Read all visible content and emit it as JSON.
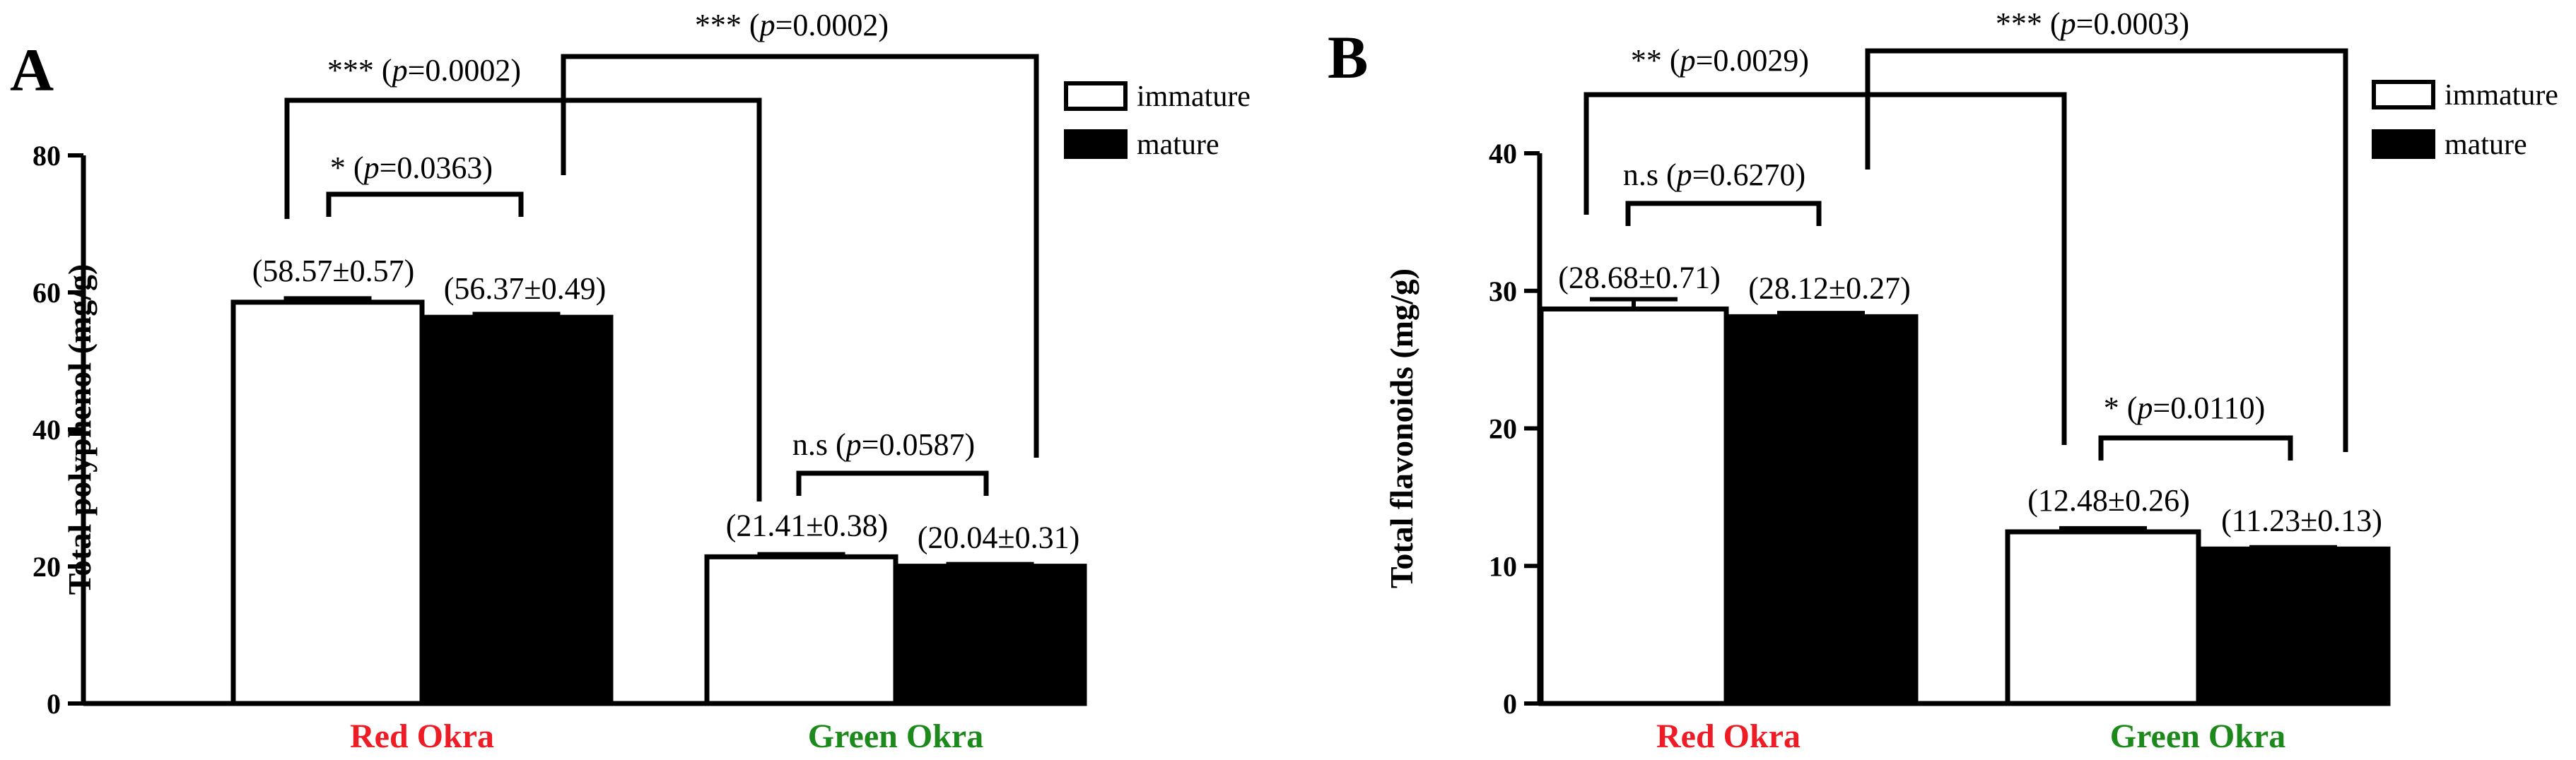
{
  "chart_data": [
    {
      "panel": "A",
      "type": "bar",
      "ylabel": "Total polyphenol (mg/g)",
      "ylim": [
        0,
        80
      ],
      "yticks": [
        0,
        20,
        40,
        60,
        80
      ],
      "categories": [
        {
          "label": "Red Okra",
          "color": "#ee1c25"
        },
        {
          "label": "Green Okra",
          "color": "#1b8a1b"
        }
      ],
      "legend": {
        "placement": "top-right",
        "entries": [
          {
            "label": "immature",
            "fill": "#ffffff"
          },
          {
            "label": "mature",
            "fill": "#000000"
          }
        ]
      },
      "series": [
        {
          "name": "immature",
          "fill": "#ffffff",
          "values": [
            58.57,
            21.41
          ],
          "errors": [
            0.57,
            0.38
          ],
          "labels": [
            "(58.57±0.57)",
            "(21.41±0.38)"
          ]
        },
        {
          "name": "mature",
          "fill": "#000000",
          "values": [
            56.37,
            20.04
          ],
          "errors": [
            0.49,
            0.31
          ],
          "labels": [
            "(56.37±0.49)",
            "(20.04±0.31)"
          ]
        }
      ],
      "comparisons": [
        {
          "stars": "*",
          "p": "0.0363",
          "kind": "within-red"
        },
        {
          "stars": "n.s",
          "p": "0.0587",
          "kind": "within-green"
        },
        {
          "stars": "***",
          "p": "0.0002",
          "kind": "immature"
        },
        {
          "stars": "***",
          "p": "0.0002",
          "kind": "mature"
        }
      ]
    },
    {
      "panel": "B",
      "type": "bar",
      "ylabel": "Total flavonoids (mg/g)",
      "ylim": [
        0,
        40
      ],
      "yticks": [
        0,
        10,
        20,
        30,
        40
      ],
      "categories": [
        {
          "label": "Red Okra",
          "color": "#ee1c25"
        },
        {
          "label": "Green Okra",
          "color": "#1b8a1b"
        }
      ],
      "legend": {
        "placement": "top-right",
        "entries": [
          {
            "label": "immature",
            "fill": "#ffffff"
          },
          {
            "label": "mature",
            "fill": "#000000"
          }
        ]
      },
      "series": [
        {
          "name": "immature",
          "fill": "#ffffff",
          "values": [
            28.68,
            12.48
          ],
          "errors": [
            0.71,
            0.26
          ],
          "labels": [
            "(28.68±0.71)",
            "(12.48±0.26)"
          ]
        },
        {
          "name": "mature",
          "fill": "#000000",
          "values": [
            28.12,
            11.23
          ],
          "errors": [
            0.27,
            0.13
          ],
          "labels": [
            "(28.12±0.27)",
            "(11.23±0.13)"
          ]
        }
      ],
      "comparisons": [
        {
          "stars": "n.s",
          "p": "0.6270",
          "kind": "within-red"
        },
        {
          "stars": "*",
          "p": "0.0110",
          "kind": "within-green"
        },
        {
          "stars": "**",
          "p": "0.0029",
          "kind": "immature"
        },
        {
          "stars": "***",
          "p": "0.0003",
          "kind": "mature"
        }
      ]
    }
  ]
}
